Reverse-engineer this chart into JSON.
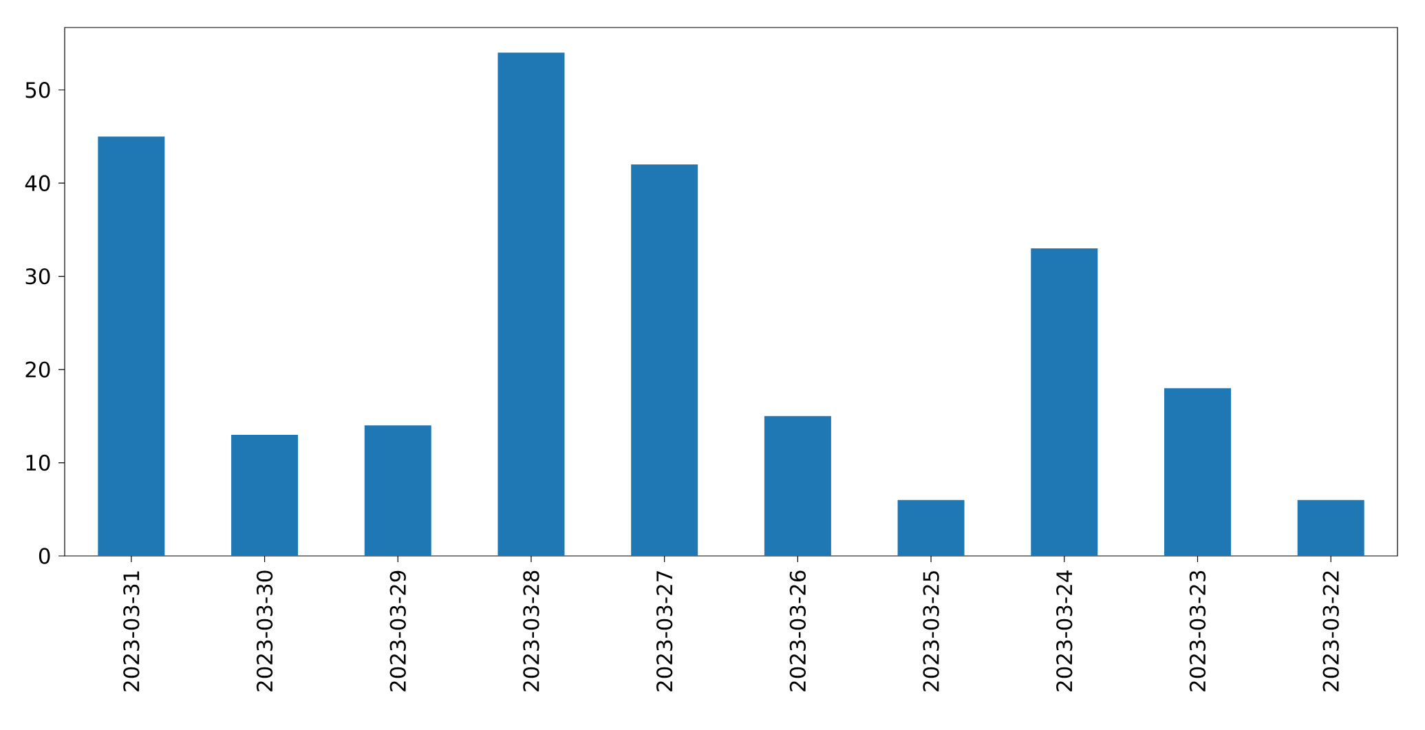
{
  "chart_data": {
    "type": "bar",
    "categories": [
      "2023-03-31",
      "2023-03-30",
      "2023-03-29",
      "2023-03-28",
      "2023-03-27",
      "2023-03-26",
      "2023-03-25",
      "2023-03-24",
      "2023-03-23",
      "2023-03-22"
    ],
    "values": [
      45,
      13,
      14,
      54,
      42,
      15,
      6,
      33,
      18,
      6
    ],
    "color": "#1f77b4",
    "ylim": [
      0,
      56.7
    ],
    "yticks": [
      0,
      10,
      20,
      30,
      40,
      50
    ],
    "grid": false
  }
}
